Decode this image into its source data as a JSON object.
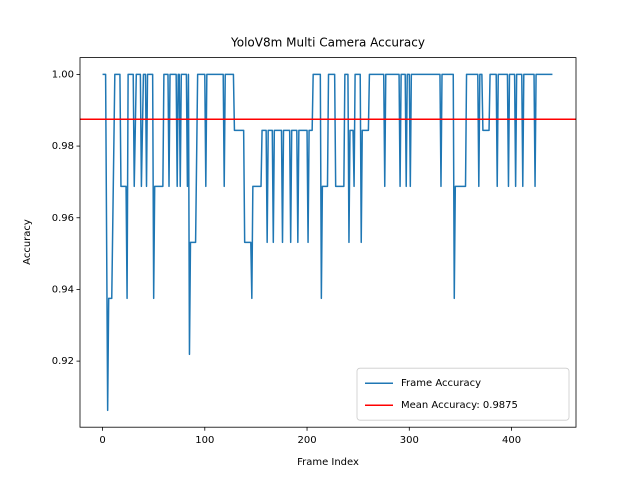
{
  "chart_data": {
    "type": "line",
    "title": "YoloV8m Multi Camera Accuracy",
    "x_label": "Frame Index",
    "y_label": "Accuracy",
    "series": [
      {
        "name": "Frame Accuracy",
        "color": "#1f77b4",
        "x": [
          0,
          3,
          5,
          6,
          9,
          12,
          17,
          18,
          23,
          24,
          25,
          30,
          31,
          33,
          37,
          38,
          40,
          42,
          43,
          44,
          49,
          50,
          51,
          59,
          60,
          64,
          65,
          66,
          72,
          73,
          74,
          75,
          76,
          77,
          82,
          83,
          84,
          85,
          86,
          91,
          93,
          100,
          101,
          102,
          118,
          119,
          120,
          128,
          129,
          138,
          139,
          145,
          146,
          147,
          155,
          156,
          160,
          161,
          162,
          166,
          167,
          168,
          175,
          176,
          177,
          183,
          184,
          185,
          190,
          191,
          192,
          200,
          201,
          202,
          205,
          206,
          213,
          214,
          215,
          220,
          221,
          227,
          228,
          236,
          237,
          240,
          241,
          242,
          245,
          246,
          247,
          252,
          253,
          254,
          260,
          261,
          275,
          276,
          277,
          290,
          291,
          292,
          296,
          297,
          298,
          300,
          301,
          302,
          330,
          331,
          332,
          343,
          344,
          345,
          355,
          356,
          367,
          368,
          369,
          371,
          372,
          378,
          379,
          385,
          386,
          387,
          396,
          397,
          398,
          403,
          404,
          405,
          410,
          411,
          412,
          422,
          423,
          424,
          440
        ],
        "values": [
          1,
          1,
          0.90625,
          0.9375,
          0.9375,
          1,
          1,
          0.96875,
          0.96875,
          0.9375,
          1,
          1,
          0.96875,
          1,
          1,
          0.96875,
          1,
          1,
          0.96875,
          1,
          1,
          0.9375,
          0.96875,
          0.96875,
          1,
          1,
          0.96875,
          1,
          1,
          0.96875,
          1,
          1,
          0.96875,
          1,
          1,
          0.96875,
          1,
          0.921875,
          0.953125,
          0.953125,
          1,
          1,
          0.96875,
          1,
          1,
          0.96875,
          1,
          1,
          0.984375,
          0.984375,
          0.953125,
          0.953125,
          0.9375,
          0.96875,
          0.96875,
          0.984375,
          0.984375,
          0.953125,
          0.984375,
          0.984375,
          0.953125,
          0.984375,
          0.984375,
          0.953125,
          0.984375,
          0.984375,
          0.953125,
          0.984375,
          0.984375,
          0.953125,
          0.984375,
          0.984375,
          0.953125,
          0.984375,
          0.984375,
          1,
          1,
          0.9375,
          0.96875,
          0.96875,
          1,
          1,
          0.96875,
          0.96875,
          1,
          1,
          0.953125,
          0.984375,
          0.984375,
          0.96875,
          1,
          1,
          0.953125,
          0.984375,
          0.984375,
          1,
          1,
          0.96875,
          1,
          1,
          0.96875,
          1,
          1,
          0.96875,
          1,
          1,
          0.96875,
          1,
          1,
          0.96875,
          1,
          1,
          0.9375,
          0.96875,
          0.96875,
          1,
          1,
          0.96875,
          1,
          1,
          0.984375,
          0.984375,
          1,
          1,
          0.96875,
          1,
          1,
          0.96875,
          1,
          1,
          0.96875,
          1,
          1,
          0.96875,
          1,
          1,
          0.96875,
          1,
          1
        ]
      }
    ],
    "hlines": [
      {
        "name": "Mean Accuracy: 0.9875",
        "color": "#ff0000",
        "value": 0.9875
      }
    ],
    "xlim": [
      -22.05,
      463.05
    ],
    "xticks": [
      0,
      100,
      200,
      300,
      400
    ],
    "ylim": [
      0.9015625,
      1.0046875
    ],
    "yticks": [
      0.92,
      0.94,
      0.96,
      0.98,
      {
        "value": 1,
        "label": "1.00"
      }
    ],
    "legend": "lower right"
  }
}
